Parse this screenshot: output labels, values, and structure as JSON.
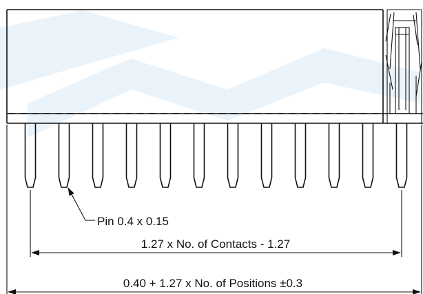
{
  "labels": {
    "pin": "Pin 0.4 x 0.15",
    "contacts_dim": "1.27 x No. of Contacts - 1.27",
    "positions_dim": "0.40 + 1.27 x No. of Positions ±0.3"
  },
  "pins": {
    "count": 12
  },
  "colors": {
    "line": "#111111",
    "watermark": "#dbe9f6",
    "background": "#ffffff"
  }
}
